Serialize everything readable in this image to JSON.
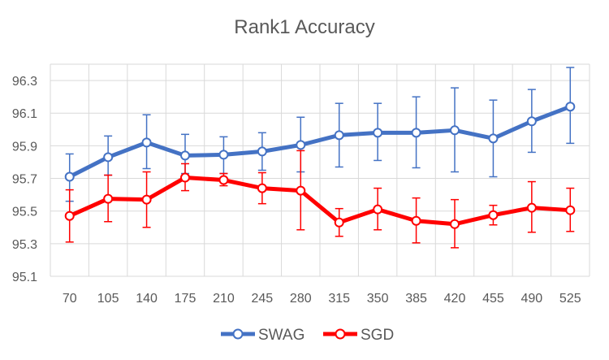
{
  "chart_data": {
    "type": "line",
    "title": "Rank1 Accuracy",
    "xlabel": "",
    "ylabel": "",
    "categories": [
      "70",
      "105",
      "140",
      "175",
      "210",
      "245",
      "280",
      "315",
      "350",
      "385",
      "420",
      "455",
      "490",
      "525"
    ],
    "ylim": [
      95.1,
      96.4
    ],
    "yticks": [
      95.1,
      95.3,
      95.5,
      95.7,
      95.9,
      96.1,
      96.3
    ],
    "ytick_labels": [
      "95.1",
      "95.3",
      "95.5",
      "95.7",
      "95.9",
      "96.1",
      "96.3"
    ],
    "grid": true,
    "legend_position": "bottom",
    "series": [
      {
        "name": "SWAG",
        "color": "#4472C4",
        "values": [
          95.71,
          95.83,
          95.92,
          95.84,
          95.845,
          95.865,
          95.905,
          95.965,
          95.98,
          95.98,
          95.995,
          95.945,
          96.05,
          96.14
        ],
        "err_low": [
          95.56,
          95.72,
          95.76,
          95.73,
          95.73,
          95.75,
          95.74,
          95.77,
          95.81,
          95.765,
          95.74,
          95.71,
          95.86,
          95.915
        ],
        "err_high": [
          95.85,
          95.96,
          96.09,
          95.97,
          95.955,
          95.98,
          96.075,
          96.16,
          96.16,
          96.2,
          96.255,
          96.18,
          96.245,
          96.38
        ]
      },
      {
        "name": "SGD",
        "color": "#FF0000",
        "values": [
          95.47,
          95.575,
          95.57,
          95.705,
          95.69,
          95.64,
          95.625,
          95.43,
          95.51,
          95.44,
          95.42,
          95.475,
          95.52,
          95.505
        ],
        "err_low": [
          95.31,
          95.435,
          95.4,
          95.625,
          95.655,
          95.545,
          95.385,
          95.345,
          95.385,
          95.305,
          95.275,
          95.415,
          95.37,
          95.375
        ],
        "err_high": [
          95.63,
          95.72,
          95.74,
          95.79,
          95.73,
          95.735,
          95.87,
          95.515,
          95.64,
          95.58,
          95.57,
          95.535,
          95.68,
          95.64
        ]
      }
    ]
  }
}
